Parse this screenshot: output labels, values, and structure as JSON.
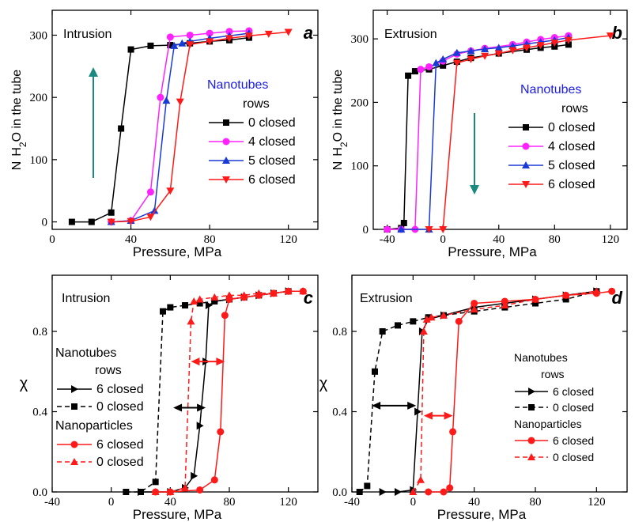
{
  "chart_data": [
    {
      "id": "a",
      "type": "line",
      "panel_letter": "a",
      "title": "Intrusion",
      "xlabel": "Pressure, MPa",
      "ylabel_parts": [
        "N",
        "H",
        "2",
        "O in the tube"
      ],
      "xlim": [
        0,
        135
      ],
      "ylim": [
        -12,
        340
      ],
      "xticks": [
        0,
        40,
        80,
        120
      ],
      "yticks": [
        0,
        100,
        200,
        300
      ],
      "legend_title": "Nanotubes",
      "legend_subtitle": "rows",
      "arrow_direction": "up",
      "arrow_color": "#1a8a80",
      "series": [
        {
          "name": "0 closed",
          "color": "#000000",
          "marker": "square",
          "dash": "solid",
          "x": [
            10,
            20,
            30,
            35,
            40,
            50,
            60,
            70,
            80,
            90,
            100
          ],
          "y": [
            0,
            0,
            15,
            150,
            277,
            283,
            284,
            287,
            290,
            292,
            296
          ]
        },
        {
          "name": "4 closed",
          "color": "#ff22ff",
          "marker": "circle",
          "dash": "solid",
          "x": [
            30,
            40,
            50,
            55,
            60,
            70,
            80,
            90,
            100
          ],
          "y": [
            0,
            2,
            48,
            200,
            297,
            300,
            303,
            306,
            307
          ]
        },
        {
          "name": "5 closed",
          "color": "#1a3ad6",
          "marker": "triangle-up",
          "dash": "solid",
          "x": [
            30,
            40,
            52,
            58,
            62,
            66,
            70,
            80,
            90,
            100
          ],
          "y": [
            0,
            2,
            18,
            195,
            283,
            287,
            290,
            295,
            299,
            303
          ]
        },
        {
          "name": "6 closed",
          "color": "#ff1a1a",
          "marker": "triangle-down",
          "dash": "solid",
          "x": [
            30,
            40,
            50,
            60,
            65,
            70,
            80,
            90,
            100,
            110,
            120
          ],
          "y": [
            0,
            1,
            8,
            50,
            193,
            285,
            290,
            295,
            299,
            302,
            305
          ]
        }
      ]
    },
    {
      "id": "b",
      "type": "line",
      "panel_letter": "b",
      "title": "Extrusion",
      "xlabel": "Pressure, MPa",
      "ylabel_parts": [
        "N",
        "H",
        "2",
        "O in the tube"
      ],
      "xlim": [
        -50,
        132
      ],
      "ylim": [
        0,
        345
      ],
      "xticks": [
        -40,
        0,
        40,
        80,
        120
      ],
      "yticks": [
        0,
        100,
        200,
        300
      ],
      "legend_title": "Nanotubes",
      "legend_subtitle": "rows",
      "arrow_direction": "down",
      "arrow_color": "#1a8a80",
      "series": [
        {
          "name": "0 closed",
          "color": "#000000",
          "marker": "square",
          "dash": "solid",
          "x": [
            -40,
            -30,
            -28,
            -25,
            -20,
            -10,
            0,
            10,
            20,
            40,
            60,
            70,
            80,
            90
          ],
          "y": [
            0,
            2,
            10,
            242,
            249,
            252,
            258,
            264,
            270,
            277,
            283,
            286,
            288,
            291
          ]
        },
        {
          "name": "4 closed",
          "color": "#ff22ff",
          "marker": "circle",
          "dash": "solid",
          "x": [
            -40,
            -30,
            -20,
            -16,
            -10,
            0,
            10,
            20,
            30,
            50,
            60,
            70,
            80,
            90
          ],
          "y": [
            0,
            0,
            0,
            252,
            256,
            265,
            276,
            281,
            285,
            291,
            295,
            299,
            302,
            305
          ]
        },
        {
          "name": "5 closed",
          "color": "#1a3ad6",
          "marker": "triangle-up",
          "dash": "solid",
          "x": [
            -30,
            -10,
            -5,
            0,
            10,
            20,
            30,
            40,
            50,
            60,
            70,
            80,
            90
          ],
          "y": [
            0,
            0,
            262,
            268,
            278,
            281,
            284,
            286,
            289,
            292,
            295,
            298,
            302
          ]
        },
        {
          "name": "6 closed",
          "color": "#ff1a1a",
          "marker": "triangle-down",
          "dash": "solid",
          "x": [
            -10,
            0,
            10,
            20,
            30,
            40,
            50,
            60,
            70,
            80,
            90,
            120
          ],
          "y": [
            0,
            0,
            262,
            268,
            273,
            277,
            282,
            286,
            290,
            294,
            298,
            305
          ]
        }
      ]
    },
    {
      "id": "c",
      "type": "line",
      "panel_letter": "c",
      "title": "Intrusion",
      "xlabel": "Pressure, MPa",
      "ylabel_parts": [
        "χ"
      ],
      "xlim": [
        -40,
        140
      ],
      "ylim": [
        0,
        1.08
      ],
      "xticks": [
        -40,
        0,
        40,
        80,
        120
      ],
      "yticks": [
        0.0,
        0.4,
        0.8
      ],
      "ytick_labels": [
        "0.0",
        "0.4",
        "0.8"
      ],
      "legend_groups": [
        {
          "title": "Nanotubes",
          "subtitle": "rows",
          "entries": [
            0,
            1
          ]
        },
        {
          "title": "Nanoparticles",
          "entries": [
            2,
            3
          ]
        }
      ],
      "hysteresis_arrows": [
        {
          "x_from": 42,
          "x_to": 64,
          "y": 0.42,
          "color": "#000000"
        },
        {
          "x_from": 54,
          "x_to": 77,
          "y": 0.65,
          "color": "#ff1a1a"
        }
      ],
      "series": [
        {
          "name": "6 closed",
          "color": "#000000",
          "marker": "triangle-right",
          "dash": "solid",
          "x": [
            20,
            40,
            50,
            56,
            60,
            64,
            66,
            70,
            80,
            90,
            100,
            110,
            120
          ],
          "y": [
            0,
            0,
            0.02,
            0.08,
            0.33,
            0.65,
            0.93,
            0.95,
            0.96,
            0.97,
            0.98,
            0.99,
            1.0
          ]
        },
        {
          "name": "0 closed",
          "color": "#000000",
          "marker": "square",
          "dash": "dashed",
          "x": [
            10,
            20,
            30,
            35,
            40,
            50,
            60,
            70,
            80,
            90,
            100,
            110,
            120
          ],
          "y": [
            0,
            0,
            0.05,
            0.9,
            0.92,
            0.93,
            0.94,
            0.95,
            0.96,
            0.97,
            0.98,
            0.99,
            1.0
          ]
        },
        {
          "name": "6 closed",
          "color": "#ff1a1a",
          "marker": "circle",
          "dash": "solid",
          "x": [
            30,
            40,
            60,
            70,
            74,
            77,
            80,
            90,
            100,
            110,
            120,
            130
          ],
          "y": [
            0,
            0,
            0.01,
            0.06,
            0.3,
            0.88,
            0.96,
            0.97,
            0.98,
            0.99,
            1.0,
            1.0
          ]
        },
        {
          "name": "0 closed",
          "color": "#ff1a1a",
          "marker": "triangle-up",
          "dash": "dashed",
          "x": [
            30,
            40,
            50,
            54,
            56,
            60,
            70,
            80,
            90,
            100,
            110,
            120,
            130
          ],
          "y": [
            0,
            0,
            0.02,
            0.85,
            0.95,
            0.96,
            0.97,
            0.98,
            0.98,
            0.99,
            0.99,
            1.0,
            1.0
          ]
        }
      ]
    },
    {
      "id": "d",
      "type": "line",
      "panel_letter": "d",
      "title": "Extrusion",
      "xlabel": "Pressure, MPa",
      "ylabel_parts": [
        "χ"
      ],
      "xlim": [
        -40,
        140
      ],
      "ylim": [
        0,
        1.08
      ],
      "xticks": [
        -40,
        0,
        40,
        80,
        120
      ],
      "yticks": [
        0.0,
        0.4,
        0.8
      ],
      "ytick_labels": [
        "0.0",
        "0.4",
        "0.8"
      ],
      "legend_groups": [
        {
          "title": "Nanotubes",
          "subtitle": "rows",
          "entries": [
            0,
            1
          ]
        },
        {
          "title": "Nanoparticles",
          "entries": [
            2,
            3
          ]
        }
      ],
      "hysteresis_arrows": [
        {
          "x_from": -27,
          "x_to": 2,
          "y": 0.43,
          "color": "#000000"
        },
        {
          "x_from": 7,
          "x_to": 26,
          "y": 0.38,
          "color": "#ff1a1a"
        }
      ],
      "series": [
        {
          "name": "6 closed",
          "color": "#000000",
          "marker": "triangle-right",
          "dash": "solid",
          "x": [
            -20,
            -10,
            0,
            3,
            6,
            10,
            20,
            40,
            60,
            80,
            100,
            120
          ],
          "y": [
            0,
            0,
            0.01,
            0.4,
            0.8,
            0.86,
            0.88,
            0.92,
            0.94,
            0.96,
            0.98,
            1.0
          ]
        },
        {
          "name": "0 closed",
          "color": "#000000",
          "marker": "square",
          "dash": "dashed",
          "x": [
            -35,
            -30,
            -25,
            -20,
            -10,
            0,
            10,
            20,
            40,
            60,
            80,
            100,
            120
          ],
          "y": [
            0,
            0.03,
            0.6,
            0.8,
            0.83,
            0.85,
            0.87,
            0.88,
            0.9,
            0.92,
            0.94,
            0.96,
            1.0
          ]
        },
        {
          "name": "6 closed",
          "color": "#ff1a1a",
          "marker": "circle",
          "dash": "solid",
          "x": [
            10,
            20,
            24,
            26,
            30,
            40,
            60,
            80,
            100,
            120,
            130
          ],
          "y": [
            0,
            0,
            0.02,
            0.3,
            0.85,
            0.94,
            0.95,
            0.96,
            0.98,
            0.99,
            1.0
          ]
        },
        {
          "name": "0 closed",
          "color": "#ff1a1a",
          "marker": "triangle-up",
          "dash": "dashed",
          "x": [
            0,
            5,
            7,
            9,
            12,
            20,
            40,
            60,
            80,
            100,
            120
          ],
          "y": [
            0,
            0.06,
            0.8,
            0.86,
            0.87,
            0.88,
            0.91,
            0.93,
            0.96,
            0.98,
            1.0
          ]
        }
      ]
    }
  ]
}
